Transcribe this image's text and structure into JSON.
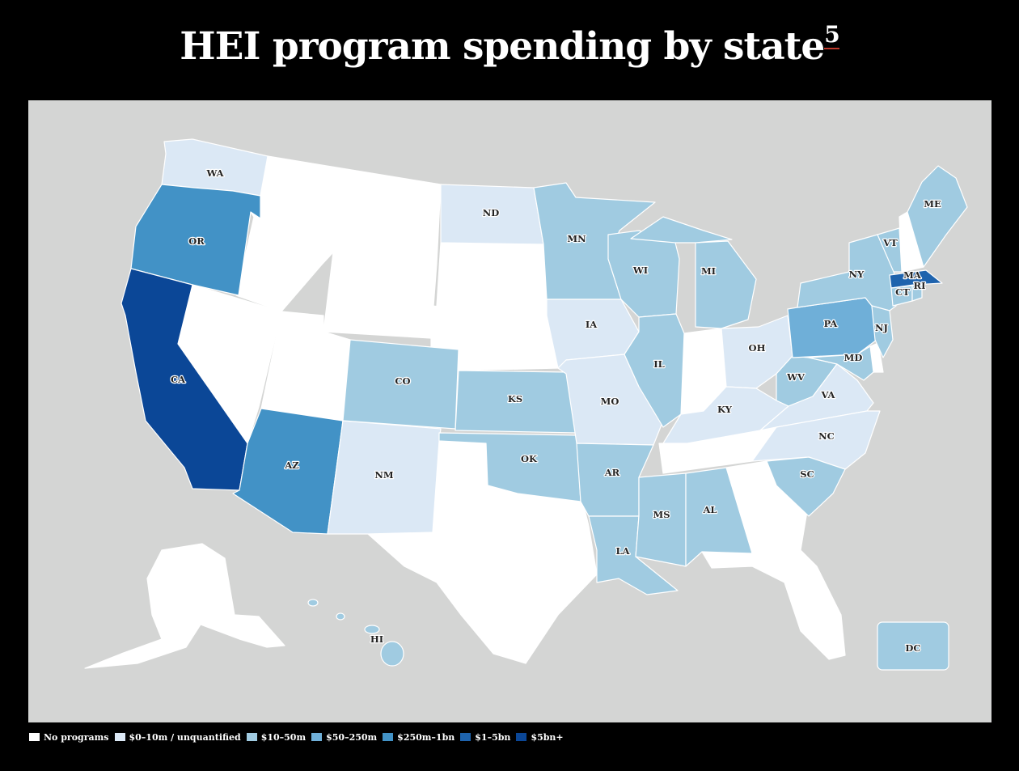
{
  "title": "HEI program spending by state",
  "title_footnote": "5",
  "colors": {
    "background": "#000000",
    "map_background": "#d4d5d4",
    "none": "#ffffff",
    "b1": "#dbe8f5",
    "b2": "#a0cbe1",
    "b3": "#6fafd8",
    "b4": "#4292c6",
    "b5": "#1e63ad",
    "b6": "#0b4797"
  },
  "legend": [
    {
      "label": "No programs",
      "color": "#ffffff"
    },
    {
      "label": "$0–10m / unquantified",
      "color": "#dbe8f5"
    },
    {
      "label": "$10–50m",
      "color": "#a0cbe1"
    },
    {
      "label": "$50–250m",
      "color": "#6fafd8"
    },
    {
      "label": "$250m–1bn",
      "color": "#4292c6"
    },
    {
      "label": "$1–5bn",
      "color": "#1e63ad"
    },
    {
      "label": "$5bn+",
      "color": "#0b4797"
    }
  ],
  "states": [
    {
      "code": "WA",
      "label": "WA",
      "bin": "$0–10m / unquantified"
    },
    {
      "code": "OR",
      "label": "OR",
      "bin": "$250m–1bn"
    },
    {
      "code": "CA",
      "label": "CA",
      "bin": "$5bn+"
    },
    {
      "code": "AZ",
      "label": "AZ",
      "bin": "$250m–1bn"
    },
    {
      "code": "NM",
      "label": "NM",
      "bin": "$0–10m / unquantified"
    },
    {
      "code": "CO",
      "label": "CO",
      "bin": "$10–50m"
    },
    {
      "code": "ND",
      "label": "ND",
      "bin": "$0–10m / unquantified"
    },
    {
      "code": "MN",
      "label": "MN",
      "bin": "$10–50m"
    },
    {
      "code": "IA",
      "label": "IA",
      "bin": "$0–10m / unquantified"
    },
    {
      "code": "KS",
      "label": "KS",
      "bin": "$10–50m"
    },
    {
      "code": "OK",
      "label": "OK",
      "bin": "$10–50m"
    },
    {
      "code": "MO",
      "label": "MO",
      "bin": "$0–10m / unquantified"
    },
    {
      "code": "AR",
      "label": "AR",
      "bin": "$10–50m"
    },
    {
      "code": "LA",
      "label": "LA",
      "bin": "$10–50m"
    },
    {
      "code": "WI",
      "label": "WI",
      "bin": "$10–50m"
    },
    {
      "code": "IL",
      "label": "IL",
      "bin": "$10–50m"
    },
    {
      "code": "MI",
      "label": "MI",
      "bin": "$10–50m"
    },
    {
      "code": "MS",
      "label": "MS",
      "bin": "$10–50m"
    },
    {
      "code": "AL",
      "label": "AL",
      "bin": "$10–50m"
    },
    {
      "code": "OH",
      "label": "OH",
      "bin": "$0–10m / unquantified"
    },
    {
      "code": "KY",
      "label": "KY",
      "bin": "$0–10m / unquantified"
    },
    {
      "code": "WV",
      "label": "WV",
      "bin": "$10–50m"
    },
    {
      "code": "VA",
      "label": "VA",
      "bin": "$0–10m / unquantified"
    },
    {
      "code": "NC",
      "label": "NC",
      "bin": "$0–10m / unquantified"
    },
    {
      "code": "SC",
      "label": "SC",
      "bin": "$10–50m"
    },
    {
      "code": "PA",
      "label": "PA",
      "bin": "$50–250m"
    },
    {
      "code": "NY",
      "label": "NY",
      "bin": "$10–50m"
    },
    {
      "code": "NJ",
      "label": "NJ",
      "bin": "$10–50m"
    },
    {
      "code": "MD",
      "label": "MD",
      "bin": "$10–50m"
    },
    {
      "code": "VT",
      "label": "VT",
      "bin": "$10–50m"
    },
    {
      "code": "ME",
      "label": "ME",
      "bin": "$10–50m"
    },
    {
      "code": "MA",
      "label": "MA",
      "bin": "$1–5bn"
    },
    {
      "code": "CT",
      "label": "CT",
      "bin": "$10–50m"
    },
    {
      "code": "RI",
      "label": "RI",
      "bin": "$10–50m"
    },
    {
      "code": "HI",
      "label": "HI",
      "bin": "$10–50m"
    },
    {
      "code": "DC",
      "label": "DC",
      "bin": "$10–50m"
    }
  ]
}
